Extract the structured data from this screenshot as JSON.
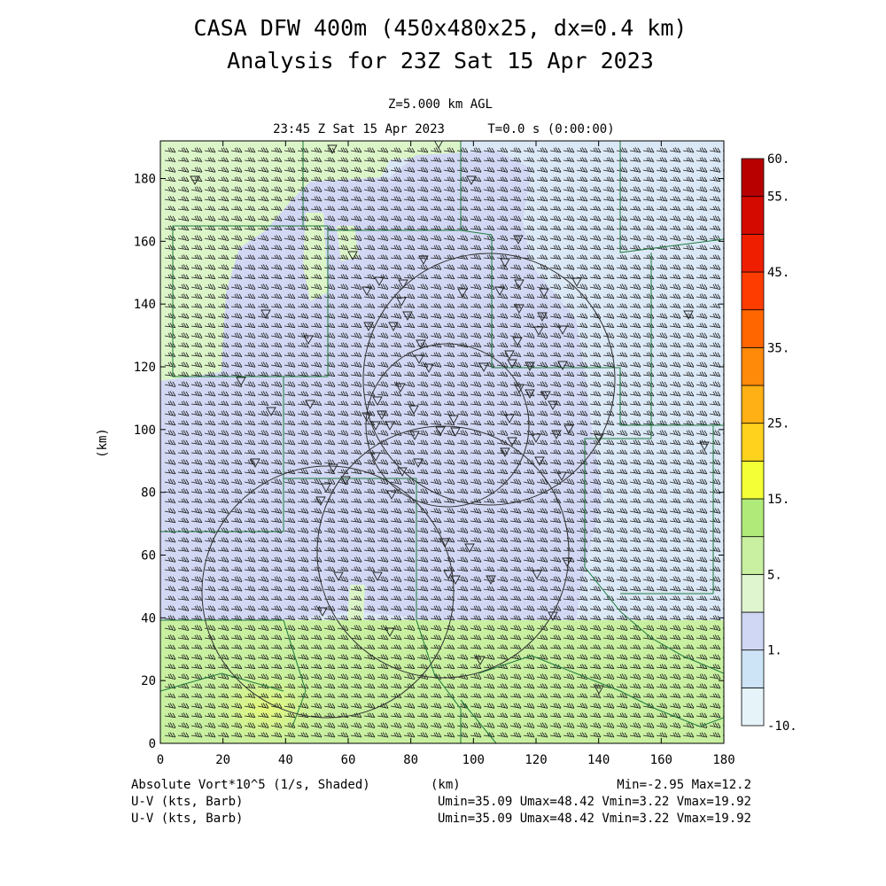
{
  "header": {
    "title_line1": "CASA DFW 400m (450x480x25, dx=0.4 km)",
    "title_line2": "Analysis for 23Z Sat 15 Apr 2023",
    "level": "Z=5.000 km AGL",
    "valid_time": "23:45 Z Sat 15 Apr 2023",
    "forecast_time": "T=0.0 s (0:00:00)"
  },
  "axes": {
    "x_ticks": [
      "0",
      "20",
      "40",
      "60",
      "80",
      "100",
      "120",
      "140",
      "160",
      "180"
    ],
    "y_ticks": [
      "0",
      "20",
      "40",
      "60",
      "80",
      "100",
      "120",
      "140",
      "160",
      "180"
    ],
    "y_label": "(km)",
    "x_label": "(km)",
    "x_range": [
      0,
      180
    ],
    "y_range": [
      0,
      192
    ]
  },
  "colorbar": {
    "labels": [
      "60.",
      "55.",
      "45.",
      "35.",
      "25.",
      "15.",
      "5.",
      "1.",
      "-10."
    ],
    "colors": [
      "#e6f4fa",
      "#cce4f5",
      "#cfd7f4",
      "#dff5cf",
      "#c8f0a0",
      "#b0ea78",
      "#f4ff36",
      "#ffd21e",
      "#ffb014",
      "#ff8a0a",
      "#ff6600",
      "#ff3c00",
      "#f01e00",
      "#d40a00",
      "#b80000"
    ]
  },
  "footer": {
    "field": "Absolute Vort*10^5 (1/s, Shaded)",
    "unit": "(km)",
    "minmax": "Min=-2.95 Max=12.2",
    "barb1_label": "U-V (kts, Barb)",
    "barb1_stats": "Umin=35.09 Umax=48.42 Vmin=3.22 Vmax=19.92",
    "barb2_label": "U-V (kts, Barb)",
    "barb2_stats": "Umin=35.09 Umax=48.42 Vmin=3.22 Vmax=19.92"
  },
  "field_colors": {
    "green_light": "#dcf5c8",
    "green_mid": "#c8f0a0",
    "green_strong": "#d8f870",
    "lavender": "#d2d8f4",
    "light_blue": "#dbe8f6",
    "boundary": "#1e7a3c"
  }
}
